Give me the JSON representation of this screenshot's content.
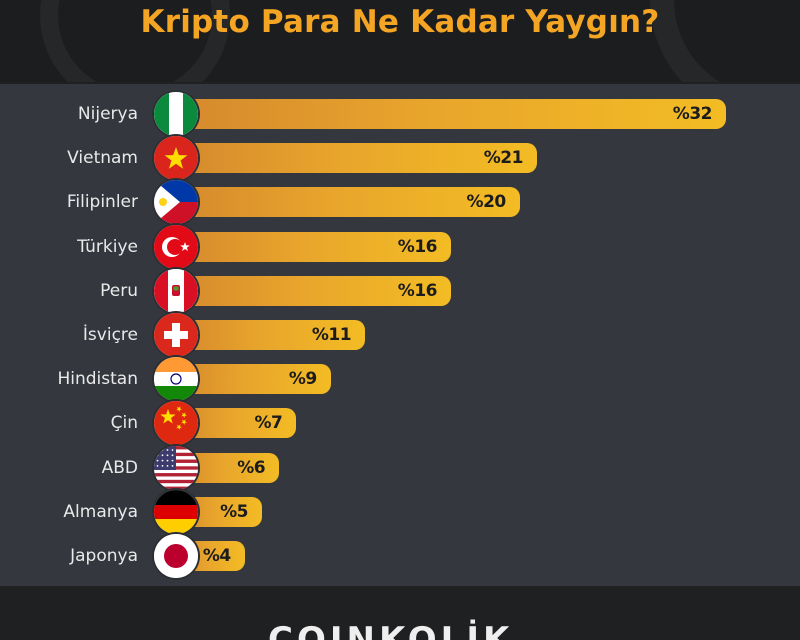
{
  "title": "Kripto Para Ne Kadar Yaygın?",
  "brand": "COINKOLİK",
  "colors": {
    "title": "#f5a524",
    "bar_start": "#d5892d",
    "bar_end": "#f3bc24",
    "panel": "#34383e",
    "background": "#1f2022"
  },
  "chart_data": {
    "type": "bar",
    "orientation": "horizontal",
    "title": "Kripto Para Ne Kadar Yaygın?",
    "categories": [
      "Nijerya",
      "Vietnam",
      "Filipinler",
      "Türkiye",
      "Peru",
      "İsviçre",
      "Hindistan",
      "Çin",
      "ABD",
      "Almanya",
      "Japonya"
    ],
    "values": [
      32,
      21,
      20,
      16,
      16,
      11,
      9,
      7,
      6,
      5,
      4
    ],
    "value_labels": [
      "%32",
      "%21",
      "%20",
      "%16",
      "%16",
      "%11",
      "%9",
      "%7",
      "%6",
      "%5",
      "%4"
    ],
    "unit": "%",
    "xlim": [
      0,
      32
    ],
    "grid": false,
    "legend": "none",
    "flag_icons": [
      "nigeria-flag-icon",
      "vietnam-flag-icon",
      "philippines-flag-icon",
      "turkey-flag-icon",
      "peru-flag-icon",
      "switzerland-flag-icon",
      "india-flag-icon",
      "china-flag-icon",
      "usa-flag-icon",
      "germany-flag-icon",
      "japan-flag-icon"
    ]
  }
}
